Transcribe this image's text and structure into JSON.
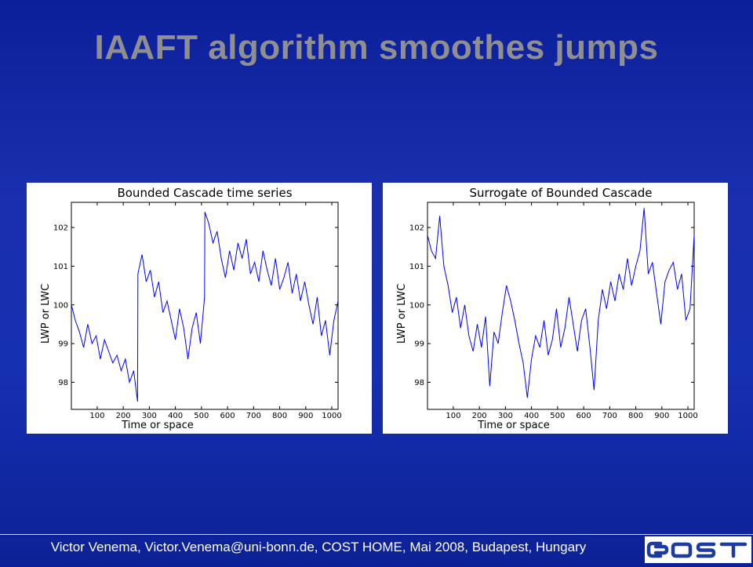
{
  "slide": {
    "title": "IAAFT algorithm smoothes jumps",
    "footer": "Victor Venema, Victor.Venema@uni-bonn.de, COST HOME, Mai 2008, Budapest, Hungary",
    "logo_text": "cost",
    "colors": {
      "background": "#1428a8",
      "title": "#8f8f8f",
      "series": "#0000ff",
      "logo": "#1c3aa0"
    }
  },
  "chart_data": [
    {
      "type": "line",
      "title": "Bounded Cascade time series",
      "xlabel": "Time or space",
      "ylabel": "LWP or LWC",
      "xlim": [
        1,
        1024
      ],
      "ylim": [
        97.3,
        102.65
      ],
      "xticks": [
        100,
        200,
        300,
        400,
        500,
        600,
        700,
        800,
        900,
        1000
      ],
      "yticks": [
        98,
        99,
        100,
        101,
        102
      ],
      "grid": false,
      "series": [
        {
          "x": [
            1,
            16,
            32,
            48,
            64,
            80,
            96,
            112,
            128,
            144,
            160,
            176,
            192,
            208,
            224,
            240,
            255,
            256,
            272,
            288,
            304,
            320,
            336,
            352,
            368,
            384,
            400,
            416,
            432,
            448,
            464,
            480,
            496,
            512,
            513,
            528,
            544,
            560,
            576,
            592,
            608,
            624,
            640,
            656,
            672,
            688,
            704,
            720,
            736,
            752,
            768,
            784,
            800,
            816,
            832,
            848,
            864,
            880,
            896,
            912,
            928,
            944,
            960,
            976,
            992,
            1008,
            1024
          ],
          "values": [
            100.0,
            99.6,
            99.3,
            98.9,
            99.5,
            99.0,
            99.2,
            98.6,
            99.1,
            98.8,
            98.5,
            98.7,
            98.3,
            98.6,
            98.0,
            98.3,
            97.5,
            100.8,
            101.3,
            100.6,
            100.9,
            100.2,
            100.6,
            99.8,
            100.1,
            99.6,
            99.1,
            99.9,
            99.4,
            98.6,
            99.4,
            99.8,
            99.0,
            100.2,
            102.4,
            102.1,
            101.6,
            101.9,
            101.2,
            100.7,
            101.4,
            100.9,
            101.6,
            101.2,
            101.7,
            100.8,
            101.1,
            100.6,
            101.4,
            100.9,
            100.5,
            101.2,
            100.4,
            100.7,
            101.1,
            100.3,
            100.8,
            100.1,
            100.6,
            100.0,
            99.5,
            100.2,
            99.2,
            99.6,
            98.7,
            99.6,
            100.1
          ]
        }
      ]
    },
    {
      "type": "line",
      "title": "Surrogate of Bounded Cascade",
      "xlabel": "Time or space",
      "ylabel": "LWP or LWC",
      "xlim": [
        1,
        1024
      ],
      "ylim": [
        97.3,
        102.65
      ],
      "xticks": [
        100,
        200,
        300,
        400,
        500,
        600,
        700,
        800,
        900,
        1000
      ],
      "yticks": [
        98,
        99,
        100,
        101,
        102
      ],
      "grid": false,
      "series": [
        {
          "x": [
            1,
            16,
            32,
            48,
            64,
            80,
            96,
            112,
            128,
            144,
            160,
            176,
            192,
            208,
            224,
            240,
            256,
            272,
            288,
            304,
            320,
            336,
            352,
            368,
            384,
            400,
            416,
            432,
            448,
            464,
            480,
            496,
            512,
            528,
            544,
            560,
            576,
            592,
            608,
            624,
            640,
            656,
            672,
            688,
            704,
            720,
            736,
            752,
            768,
            784,
            800,
            816,
            832,
            848,
            864,
            880,
            896,
            912,
            928,
            944,
            960,
            976,
            992,
            1008,
            1024
          ],
          "values": [
            101.8,
            101.4,
            101.2,
            102.3,
            101.0,
            100.5,
            99.8,
            100.2,
            99.4,
            100.0,
            99.2,
            98.8,
            99.5,
            98.9,
            99.7,
            97.9,
            99.3,
            99.0,
            99.8,
            100.5,
            100.1,
            99.6,
            99.0,
            98.5,
            97.6,
            98.6,
            99.2,
            98.9,
            99.6,
            98.7,
            99.1,
            99.9,
            98.9,
            99.4,
            100.2,
            99.5,
            98.8,
            99.6,
            99.9,
            98.9,
            97.8,
            99.6,
            100.4,
            99.9,
            100.6,
            100.1,
            100.8,
            100.4,
            101.2,
            100.5,
            101.0,
            101.4,
            102.5,
            100.8,
            101.1,
            100.3,
            99.5,
            100.6,
            100.9,
            101.1,
            100.4,
            100.8,
            99.6,
            99.9,
            101.8
          ]
        }
      ]
    }
  ]
}
